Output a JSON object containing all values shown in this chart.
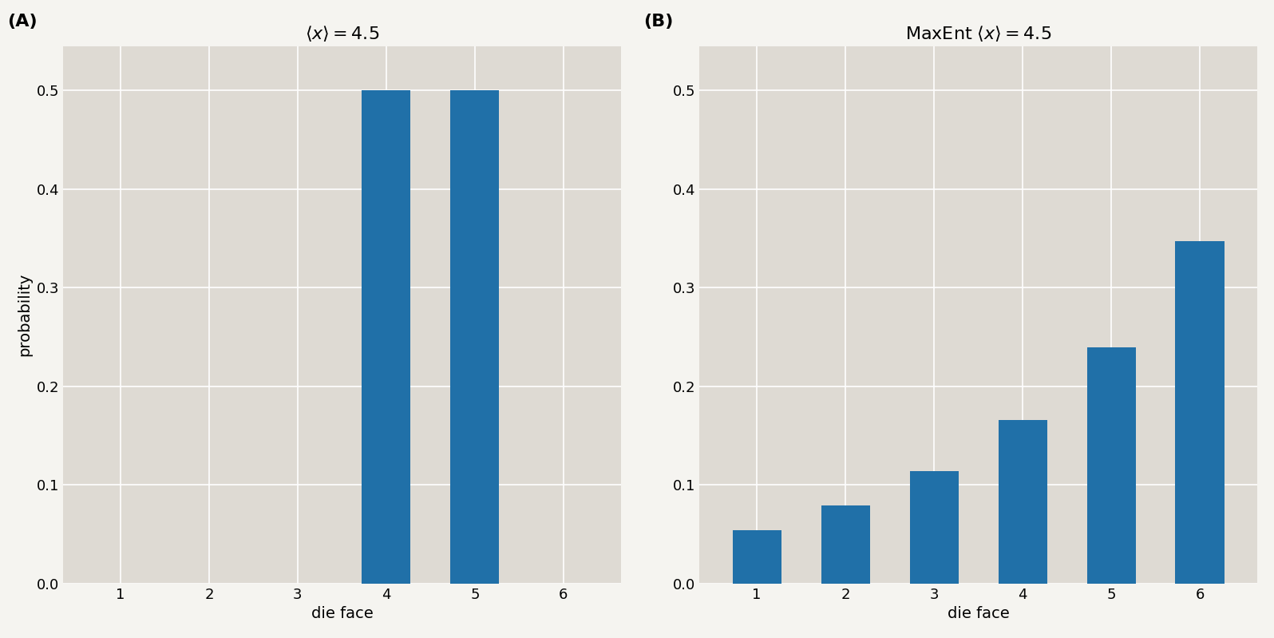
{
  "panel_A": {
    "title_parts": [
      "⟨",
      "x",
      "⟩ = 4.5"
    ],
    "title_latex": "$\\langle x \\rangle = 4.5$",
    "faces": [
      1,
      2,
      3,
      4,
      5,
      6
    ],
    "probs": [
      0.0,
      0.0,
      0.0,
      0.5,
      0.5,
      0.0
    ],
    "xlabel": "die face",
    "ylabel": "probability",
    "label": "(A)",
    "ylim": [
      0.0,
      0.545
    ],
    "yticks": [
      0.0,
      0.1,
      0.2,
      0.3,
      0.4,
      0.5
    ]
  },
  "panel_B": {
    "title_latex": "MaxEnt $\\langle x \\rangle = 4.5$",
    "faces": [
      1,
      2,
      3,
      4,
      5,
      6
    ],
    "xlabel": "die face",
    "label": "(B)",
    "ylim": [
      0.0,
      0.545
    ],
    "yticks": [
      0.0,
      0.1,
      0.2,
      0.3,
      0.4,
      0.5
    ]
  },
  "bar_color": "#2070a8",
  "bg_color": "#dedad3",
  "fig_bg_color": "#f5f4f0",
  "bar_width": 0.55,
  "title_fontsize": 16,
  "label_fontsize": 14,
  "tick_fontsize": 13,
  "panel_label_fontsize": 16
}
